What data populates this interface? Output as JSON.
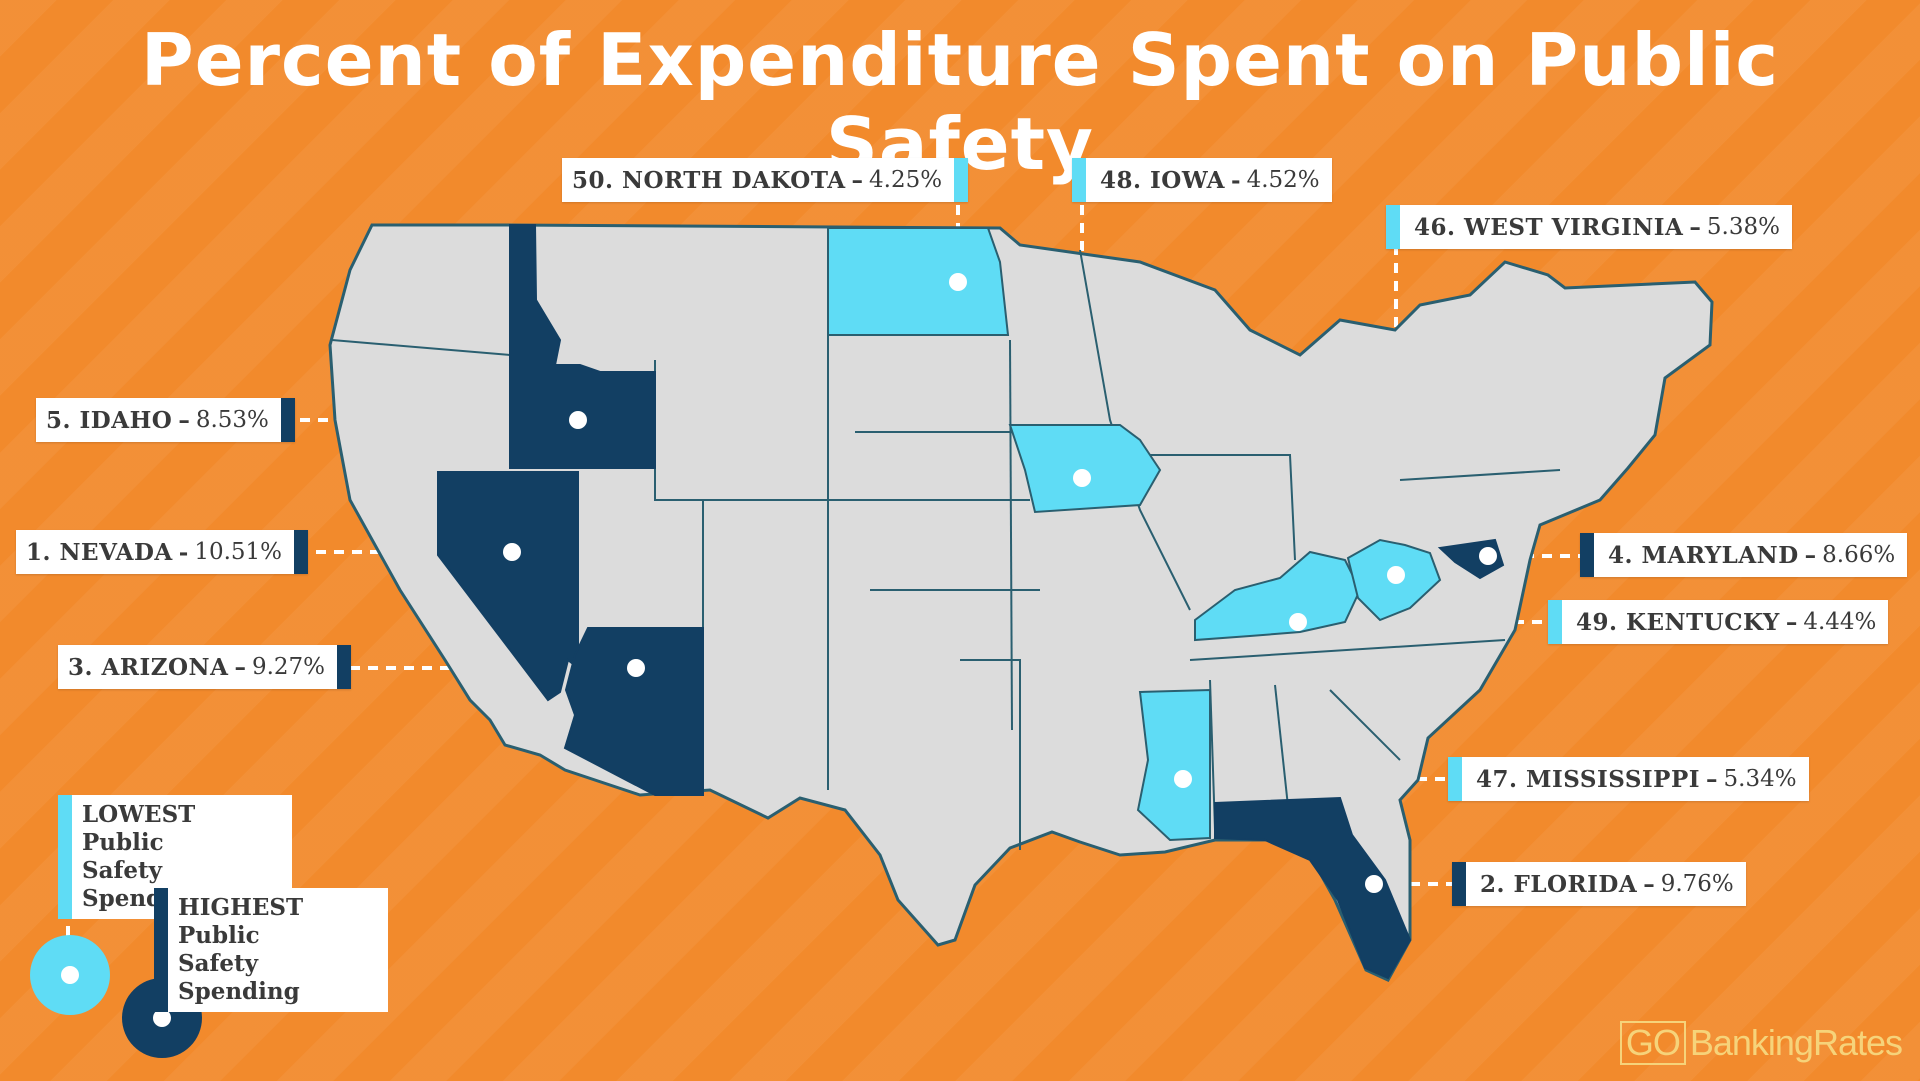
{
  "title": "Percent of Expenditure Spent on Public Safety",
  "colors": {
    "background": "#f28a2c",
    "highest": "#123f63",
    "lowest": "#5fdcf5",
    "other_states": "#dcdcdc",
    "state_border": "#2a5f70"
  },
  "callouts": [
    {
      "rank_state": "1. NEVADA",
      "value": "10.51%",
      "group": "highest"
    },
    {
      "rank_state": "2. FLORIDA",
      "value": "9.76%",
      "group": "highest"
    },
    {
      "rank_state": "3. ARIZONA",
      "value": "9.27%",
      "group": "highest"
    },
    {
      "rank_state": "4. MARYLAND",
      "value": "8.66%",
      "group": "highest"
    },
    {
      "rank_state": "5. IDAHO",
      "value": "8.53%",
      "group": "highest"
    },
    {
      "rank_state": "46. WEST VIRGINIA",
      "value": "5.38%",
      "group": "lowest"
    },
    {
      "rank_state": "47. MISSISSIPPI",
      "value": "5.34%",
      "group": "lowest"
    },
    {
      "rank_state": "48. IOWA",
      "value": "4.52%",
      "group": "lowest"
    },
    {
      "rank_state": "49. KENTUCKY",
      "value": "4.44%",
      "group": "lowest"
    },
    {
      "rank_state": "50. NORTH DAKOTA",
      "value": "4.25%",
      "group": "lowest"
    }
  ],
  "legend": {
    "lowest": {
      "line1": "LOWEST Public",
      "line2": "Safety Spending"
    },
    "highest": {
      "line1": "HIGHEST Public",
      "line2": "Safety Spending"
    }
  },
  "logo": {
    "go": "GO",
    "rest": "BankingRates"
  }
}
